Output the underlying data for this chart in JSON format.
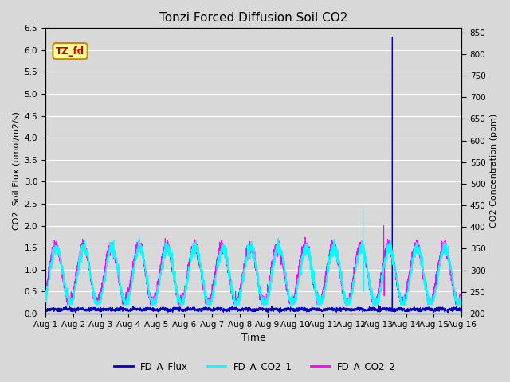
{
  "title": "Tonzi Forced Diffusion Soil CO2",
  "xlabel": "Time",
  "ylabel_left": "CO2  Soil Flux (umol/m2/s)",
  "ylabel_right": "CO2 Concentration (ppm)",
  "ylim_left": [
    0.0,
    6.5
  ],
  "ylim_right": [
    200,
    860
  ],
  "yticks_left": [
    0.0,
    0.5,
    1.0,
    1.5,
    2.0,
    2.5,
    3.0,
    3.5,
    4.0,
    4.5,
    5.0,
    5.5,
    6.0,
    6.5
  ],
  "yticks_right": [
    200,
    250,
    300,
    350,
    400,
    450,
    500,
    550,
    600,
    650,
    700,
    750,
    800,
    850
  ],
  "xtick_labels": [
    "Aug 1",
    "Aug 2",
    "Aug 3",
    "Aug 4",
    "Aug 5",
    "Aug 6",
    "Aug 7",
    "Aug 8",
    "Aug 9",
    "Aug 10",
    "Aug 11",
    "Aug 12",
    "Aug 13",
    "Aug 14",
    "Aug 15",
    "Aug 16"
  ],
  "background_color": "#d8d8d8",
  "plot_bg_color": "#d8d8d8",
  "grid_color": "#ffffff",
  "flux_color": "#0000cc",
  "co2_1_color": "#00ffff",
  "co2_2_color": "#ff00ff",
  "legend_labels": [
    "FD_A_Flux",
    "FD_A_CO2_1",
    "FD_A_CO2_2"
  ],
  "watermark_text": "TZ_fd",
  "watermark_bg": "#ffff99",
  "watermark_border": "#cc8800",
  "watermark_text_color": "#cc0000",
  "n_points": 3600,
  "days": 15,
  "spike_day_flux": 12.5,
  "spike_day_co2_1": 11.45,
  "spike_day_co2_2": 12.2
}
